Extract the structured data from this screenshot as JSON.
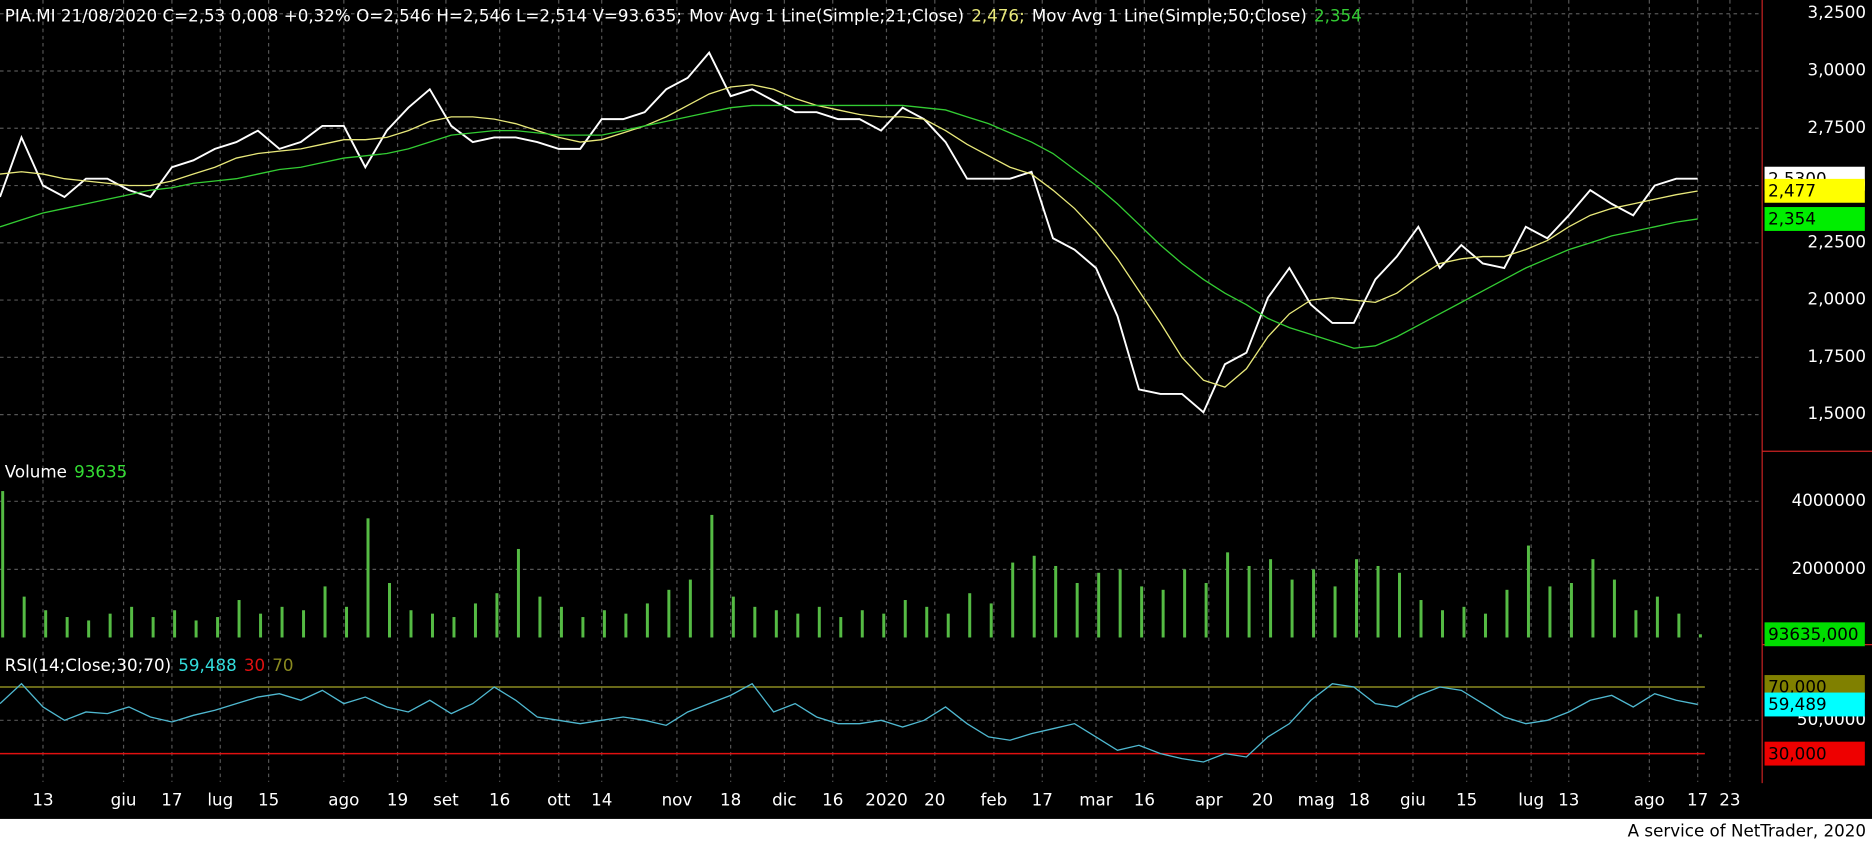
{
  "chart_data": [
    {
      "type": "line",
      "title": "PIA.MI 21/08/2020 C=2,53 0,008 +0,32% O=2,546 H=2,546 L=2,514 V=93.635;",
      "x": [
        0,
        4,
        8,
        12,
        16,
        20,
        24,
        28,
        32,
        36,
        40,
        44,
        48,
        52,
        56,
        60,
        64,
        68,
        72,
        76,
        80,
        84,
        88,
        92,
        96,
        100,
        104,
        108,
        112,
        116,
        120,
        124,
        128,
        132,
        136,
        140,
        144,
        148,
        152,
        156,
        160,
        164,
        168,
        172,
        176,
        180,
        184,
        188,
        192,
        196,
        200,
        204,
        208,
        212,
        216,
        220,
        224,
        228,
        232,
        236,
        240,
        244,
        248,
        252,
        256,
        260,
        264,
        268,
        272,
        276,
        280,
        284,
        288,
        292,
        296,
        300,
        304,
        308,
        312,
        316
      ],
      "xlim": [
        0,
        328
      ],
      "xticks": [
        {
          "value": 8,
          "label": "13"
        },
        {
          "value": 23,
          "label": "giu"
        },
        {
          "value": 32,
          "label": "17"
        },
        {
          "value": 41,
          "label": "lug"
        },
        {
          "value": 50,
          "label": "15"
        },
        {
          "value": 64,
          "label": "ago"
        },
        {
          "value": 74,
          "label": "19"
        },
        {
          "value": 83,
          "label": "set"
        },
        {
          "value": 93,
          "label": "16"
        },
        {
          "value": 104,
          "label": "ott"
        },
        {
          "value": 112,
          "label": "14"
        },
        {
          "value": 126,
          "label": "nov"
        },
        {
          "value": 136,
          "label": "18"
        },
        {
          "value": 146,
          "label": "dic"
        },
        {
          "value": 155,
          "label": "16"
        },
        {
          "value": 165,
          "label": "2020"
        },
        {
          "value": 174,
          "label": "20"
        },
        {
          "value": 185,
          "label": "feb"
        },
        {
          "value": 194,
          "label": "17"
        },
        {
          "value": 204,
          "label": "mar"
        },
        {
          "value": 213,
          "label": "16"
        },
        {
          "value": 225,
          "label": "apr"
        },
        {
          "value": 235,
          "label": "20"
        },
        {
          "value": 245,
          "label": "mag"
        },
        {
          "value": 253,
          "label": "18"
        },
        {
          "value": 263,
          "label": "giu"
        },
        {
          "value": 273,
          "label": "15"
        },
        {
          "value": 285,
          "label": "lug"
        },
        {
          "value": 292,
          "label": "13"
        },
        {
          "value": 307,
          "label": "ago"
        },
        {
          "value": 316,
          "label": "17"
        },
        {
          "value": 322,
          "label": "23"
        }
      ],
      "series": [
        {
          "color": "#ffffff",
          "values": [
            2.45,
            2.71,
            2.5,
            2.45,
            2.53,
            2.53,
            2.48,
            2.45,
            2.58,
            2.61,
            2.66,
            2.69,
            2.74,
            2.66,
            2.69,
            2.76,
            2.76,
            2.58,
            2.74,
            2.84,
            2.92,
            2.76,
            2.69,
            2.71,
            2.71,
            2.69,
            2.66,
            2.66,
            2.79,
            2.79,
            2.82,
            2.92,
            2.97,
            3.08,
            2.89,
            2.92,
            2.87,
            2.82,
            2.82,
            2.79,
            2.79,
            2.74,
            2.84,
            2.79,
            2.69,
            2.53,
            2.53,
            2.53,
            2.56,
            2.27,
            2.22,
            2.14,
            1.93,
            1.61,
            1.59,
            1.59,
            1.51,
            1.72,
            1.77,
            2.01,
            2.14,
            1.98,
            1.9,
            1.9,
            2.09,
            2.19,
            2.32,
            2.14,
            2.24,
            2.16,
            2.14,
            2.32,
            2.27,
            2.37,
            2.48,
            2.42,
            2.37,
            2.5,
            2.53,
            2.53
          ]
        },
        {
          "name": "Mov Avg 1 Line(Simple;21;Close)",
          "legend_value": "2,476;",
          "color": "#e8e87a",
          "values": [
            2.55,
            2.56,
            2.55,
            2.53,
            2.52,
            2.51,
            2.5,
            2.5,
            2.52,
            2.55,
            2.58,
            2.62,
            2.64,
            2.65,
            2.66,
            2.68,
            2.7,
            2.7,
            2.71,
            2.74,
            2.78,
            2.8,
            2.8,
            2.79,
            2.77,
            2.74,
            2.71,
            2.69,
            2.7,
            2.73,
            2.76,
            2.8,
            2.85,
            2.9,
            2.93,
            2.94,
            2.92,
            2.88,
            2.85,
            2.83,
            2.81,
            2.8,
            2.8,
            2.79,
            2.74,
            2.68,
            2.63,
            2.58,
            2.55,
            2.48,
            2.4,
            2.3,
            2.18,
            2.04,
            1.9,
            1.75,
            1.65,
            1.62,
            1.7,
            1.84,
            1.94,
            2.0,
            2.01,
            2.0,
            1.99,
            2.03,
            2.1,
            2.16,
            2.18,
            2.19,
            2.19,
            2.22,
            2.26,
            2.32,
            2.37,
            2.4,
            2.42,
            2.44,
            2.46,
            2.476
          ]
        },
        {
          "name": "Mov Avg 1 Line(Simple;50;Close)",
          "legend_value": "2,354",
          "color": "#33cc33",
          "values": [
            2.32,
            2.35,
            2.38,
            2.4,
            2.42,
            2.44,
            2.46,
            2.48,
            2.49,
            2.51,
            2.52,
            2.53,
            2.55,
            2.57,
            2.58,
            2.6,
            2.62,
            2.63,
            2.64,
            2.66,
            2.69,
            2.72,
            2.73,
            2.74,
            2.74,
            2.73,
            2.72,
            2.72,
            2.72,
            2.74,
            2.76,
            2.78,
            2.8,
            2.82,
            2.84,
            2.85,
            2.85,
            2.85,
            2.85,
            2.85,
            2.85,
            2.85,
            2.85,
            2.84,
            2.83,
            2.8,
            2.77,
            2.73,
            2.69,
            2.64,
            2.57,
            2.5,
            2.42,
            2.33,
            2.24,
            2.16,
            2.09,
            2.03,
            1.98,
            1.92,
            1.88,
            1.85,
            1.82,
            1.79,
            1.8,
            1.84,
            1.89,
            1.94,
            1.99,
            2.04,
            2.09,
            2.14,
            2.18,
            2.22,
            2.25,
            2.28,
            2.3,
            2.32,
            2.34,
            2.354
          ]
        }
      ],
      "ylim": [
        1.34,
        3.31
      ],
      "yticks": [
        {
          "value": 1.5,
          "label": "1,5000"
        },
        {
          "value": 1.75,
          "label": "1,7500"
        },
        {
          "value": 2,
          "label": "2,0000"
        },
        {
          "value": 2.25,
          "label": "2,2500"
        },
        {
          "value": 2.5,
          "label": "2,5000"
        },
        {
          "value": 2.75,
          "label": "2,7500"
        },
        {
          "value": 3,
          "label": "3,0000"
        },
        {
          "value": 3.25,
          "label": "3,2500"
        }
      ],
      "grid": true,
      "value_boxes": [
        {
          "value": 2.53,
          "label": "2,5300",
          "color": "#ffffff"
        },
        {
          "value": 2.477,
          "label": "2,477",
          "color": "#ffff00"
        },
        {
          "value": 2.354,
          "label": "2,354",
          "color": "#00ee00"
        }
      ]
    },
    {
      "type": "bar",
      "title": "Volume",
      "legend_value": "93635",
      "legend_color": "#33dd33",
      "color": "#55bb44",
      "values": [
        4300000,
        1200000,
        800000,
        600000,
        500000,
        700000,
        900000,
        600000,
        800000,
        500000,
        600000,
        1100000,
        700000,
        900000,
        800000,
        1500000,
        900000,
        3500000,
        1600000,
        800000,
        700000,
        600000,
        1000000,
        1300000,
        2600000,
        1200000,
        900000,
        600000,
        800000,
        700000,
        1000000,
        1400000,
        1700000,
        3600000,
        1200000,
        900000,
        800000,
        700000,
        900000,
        600000,
        800000,
        700000,
        1100000,
        900000,
        700000,
        1300000,
        1000000,
        2200000,
        2400000,
        2100000,
        1600000,
        1900000,
        2000000,
        1500000,
        1400000,
        2000000,
        1600000,
        2500000,
        2100000,
        2300000,
        1700000,
        2000000,
        1500000,
        2300000,
        2100000,
        1900000,
        1100000,
        800000,
        900000,
        700000,
        1400000,
        2700000,
        1500000,
        1600000,
        2300000,
        1700000,
        800000,
        1200000,
        700000,
        93635
      ],
      "ylim": [
        0,
        5400000
      ],
      "yticks": [
        2000000,
        4000000
      ],
      "grid": true,
      "value_boxes": [
        {
          "value": 93635,
          "label": "93635,000",
          "color": "#00dd00"
        }
      ]
    },
    {
      "type": "line",
      "title": "RSI(14;Close;30;70)",
      "legend_value": "59,488",
      "legend_color": "#33dddd",
      "color": "#4fb8d0",
      "values": [
        60,
        72,
        58,
        50,
        55,
        54,
        58,
        52,
        49,
        53,
        56,
        60,
        64,
        66,
        62,
        68,
        60,
        64,
        58,
        55,
        62,
        54,
        60,
        70,
        62,
        52,
        50,
        48,
        50,
        52,
        50,
        47,
        55,
        60,
        65,
        72,
        55,
        60,
        52,
        48,
        48,
        50,
        46,
        50,
        58,
        48,
        40,
        38,
        42,
        45,
        48,
        40,
        32,
        35,
        30,
        27,
        25,
        30,
        28,
        40,
        48,
        62,
        72,
        70,
        60,
        58,
        65,
        70,
        68,
        60,
        52,
        48,
        50,
        55,
        62,
        65,
        58,
        66,
        62,
        59.488
      ],
      "levels": [
        {
          "value": 30,
          "label": "30",
          "color": "#e01010"
        },
        {
          "value": 70,
          "label": "70",
          "color": "#8a8a20"
        }
      ],
      "ylim": [
        13,
        94
      ],
      "yticks": [
        {
          "value": 50,
          "label": "50,0000"
        }
      ],
      "grid": true,
      "value_boxes": [
        {
          "value": 70,
          "label": "70,000",
          "color": "#808000"
        },
        {
          "value": 59.489,
          "label": "59,489",
          "color": "#00ffff"
        },
        {
          "value": 30,
          "label": "30,000",
          "color": "#ee0000"
        }
      ]
    }
  ],
  "footer": "A service of NetTrader, 2020"
}
